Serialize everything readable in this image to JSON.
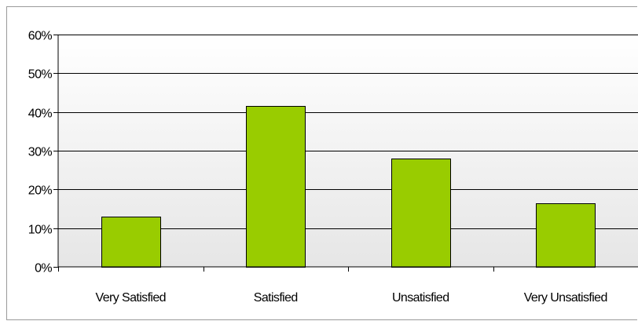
{
  "chart_data": {
    "type": "bar",
    "categories": [
      "Very Satisfied",
      "Satisfied",
      "Unsatisfied",
      "Very Unsatisfied"
    ],
    "values": [
      13,
      41.5,
      28,
      16.5
    ],
    "value_format": "percent",
    "ylim": [
      0,
      60
    ],
    "yticks": [
      "0%",
      "10%",
      "20%",
      "30%",
      "40%",
      "50%",
      "60%"
    ],
    "ytick_values": [
      0,
      10,
      20,
      30,
      40,
      50,
      60
    ],
    "bar_color": "#99cc00",
    "bar_stroke": "#000000",
    "grid": true,
    "title": "",
    "xlabel": "",
    "ylabel": ""
  }
}
